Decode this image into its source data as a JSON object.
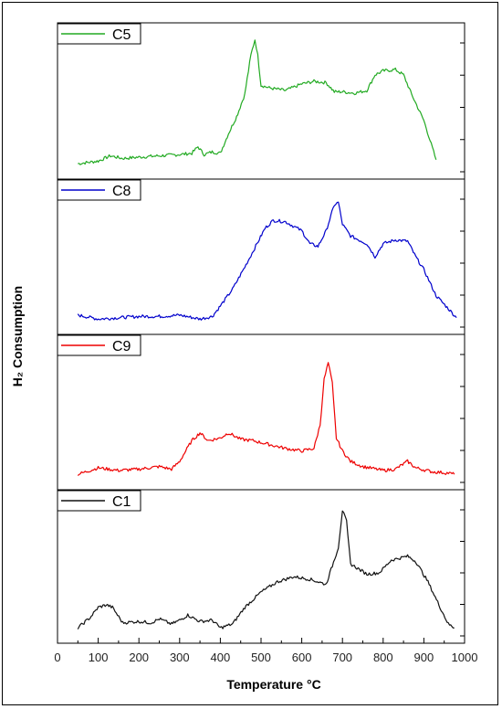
{
  "chart_data": {
    "type": "line",
    "xlabel": "Temperature °C",
    "ylabel": "H₂ Consumption",
    "xlim": [
      0,
      1000
    ],
    "x_ticks": [
      0,
      100,
      200,
      300,
      400,
      500,
      600,
      700,
      800,
      900,
      1000
    ],
    "x_tick_labels": [
      "0",
      "100",
      "200",
      "300",
      "400",
      "500",
      "600",
      "700",
      "800",
      "900",
      "1000"
    ],
    "y_tick_labels_shown": false,
    "grid": false,
    "legend_placement": "top-left",
    "panels": [
      {
        "name": "C5",
        "color": "#22aa22",
        "points": [
          [
            50,
            0.02
          ],
          [
            100,
            0.04
          ],
          [
            130,
            0.08
          ],
          [
            160,
            0.06
          ],
          [
            200,
            0.07
          ],
          [
            250,
            0.08
          ],
          [
            300,
            0.09
          ],
          [
            330,
            0.1
          ],
          [
            345,
            0.15
          ],
          [
            360,
            0.09
          ],
          [
            380,
            0.11
          ],
          [
            400,
            0.1
          ],
          [
            420,
            0.25
          ],
          [
            440,
            0.38
          ],
          [
            460,
            0.55
          ],
          [
            475,
            0.85
          ],
          [
            485,
            0.97
          ],
          [
            492,
            0.85
          ],
          [
            500,
            0.62
          ],
          [
            520,
            0.6
          ],
          [
            560,
            0.58
          ],
          [
            600,
            0.63
          ],
          [
            630,
            0.65
          ],
          [
            660,
            0.64
          ],
          [
            680,
            0.57
          ],
          [
            700,
            0.57
          ],
          [
            730,
            0.56
          ],
          [
            760,
            0.58
          ],
          [
            780,
            0.7
          ],
          [
            800,
            0.73
          ],
          [
            830,
            0.74
          ],
          [
            850,
            0.7
          ],
          [
            870,
            0.55
          ],
          [
            900,
            0.35
          ],
          [
            930,
            0.05
          ]
        ]
      },
      {
        "name": "C8",
        "color": "#0000cc",
        "points": [
          [
            50,
            0.05
          ],
          [
            100,
            0.02
          ],
          [
            150,
            0.03
          ],
          [
            200,
            0.04
          ],
          [
            250,
            0.04
          ],
          [
            300,
            0.05
          ],
          [
            350,
            0.02
          ],
          [
            380,
            0.04
          ],
          [
            400,
            0.12
          ],
          [
            430,
            0.25
          ],
          [
            460,
            0.42
          ],
          [
            490,
            0.6
          ],
          [
            510,
            0.72
          ],
          [
            530,
            0.78
          ],
          [
            560,
            0.77
          ],
          [
            600,
            0.7
          ],
          [
            620,
            0.6
          ],
          [
            640,
            0.58
          ],
          [
            660,
            0.7
          ],
          [
            680,
            0.9
          ],
          [
            690,
            0.92
          ],
          [
            700,
            0.75
          ],
          [
            720,
            0.66
          ],
          [
            760,
            0.6
          ],
          [
            780,
            0.5
          ],
          [
            800,
            0.6
          ],
          [
            830,
            0.63
          ],
          [
            860,
            0.62
          ],
          [
            880,
            0.5
          ],
          [
            900,
            0.4
          ],
          [
            930,
            0.2
          ],
          [
            960,
            0.1
          ],
          [
            980,
            0.03
          ]
        ]
      },
      {
        "name": "C9",
        "color": "#ee0000",
        "points": [
          [
            50,
            0.02
          ],
          [
            80,
            0.05
          ],
          [
            100,
            0.07
          ],
          [
            150,
            0.05
          ],
          [
            200,
            0.06
          ],
          [
            250,
            0.08
          ],
          [
            280,
            0.06
          ],
          [
            300,
            0.12
          ],
          [
            330,
            0.28
          ],
          [
            350,
            0.34
          ],
          [
            370,
            0.28
          ],
          [
            400,
            0.3
          ],
          [
            420,
            0.34
          ],
          [
            450,
            0.29
          ],
          [
            480,
            0.28
          ],
          [
            520,
            0.25
          ],
          [
            560,
            0.22
          ],
          [
            600,
            0.2
          ],
          [
            630,
            0.22
          ],
          [
            645,
            0.4
          ],
          [
            655,
            0.75
          ],
          [
            665,
            0.88
          ],
          [
            675,
            0.72
          ],
          [
            685,
            0.3
          ],
          [
            700,
            0.2
          ],
          [
            720,
            0.12
          ],
          [
            750,
            0.08
          ],
          [
            800,
            0.05
          ],
          [
            830,
            0.06
          ],
          [
            860,
            0.12
          ],
          [
            880,
            0.07
          ],
          [
            920,
            0.04
          ],
          [
            960,
            0.03
          ],
          [
            975,
            0.02
          ]
        ]
      },
      {
        "name": "C1",
        "color": "#111111",
        "points": [
          [
            50,
            0.02
          ],
          [
            80,
            0.1
          ],
          [
            100,
            0.18
          ],
          [
            120,
            0.2
          ],
          [
            135,
            0.18
          ],
          [
            160,
            0.06
          ],
          [
            200,
            0.07
          ],
          [
            230,
            0.06
          ],
          [
            250,
            0.09
          ],
          [
            280,
            0.05
          ],
          [
            300,
            0.08
          ],
          [
            320,
            0.12
          ],
          [
            350,
            0.07
          ],
          [
            380,
            0.08
          ],
          [
            400,
            0.02
          ],
          [
            430,
            0.05
          ],
          [
            460,
            0.18
          ],
          [
            500,
            0.3
          ],
          [
            540,
            0.38
          ],
          [
            580,
            0.42
          ],
          [
            620,
            0.4
          ],
          [
            660,
            0.36
          ],
          [
            690,
            0.65
          ],
          [
            700,
            0.94
          ],
          [
            710,
            0.85
          ],
          [
            720,
            0.52
          ],
          [
            760,
            0.44
          ],
          [
            790,
            0.45
          ],
          [
            820,
            0.55
          ],
          [
            860,
            0.58
          ],
          [
            880,
            0.54
          ],
          [
            910,
            0.38
          ],
          [
            940,
            0.18
          ],
          [
            960,
            0.05
          ],
          [
            975,
            0.02
          ]
        ]
      }
    ]
  }
}
